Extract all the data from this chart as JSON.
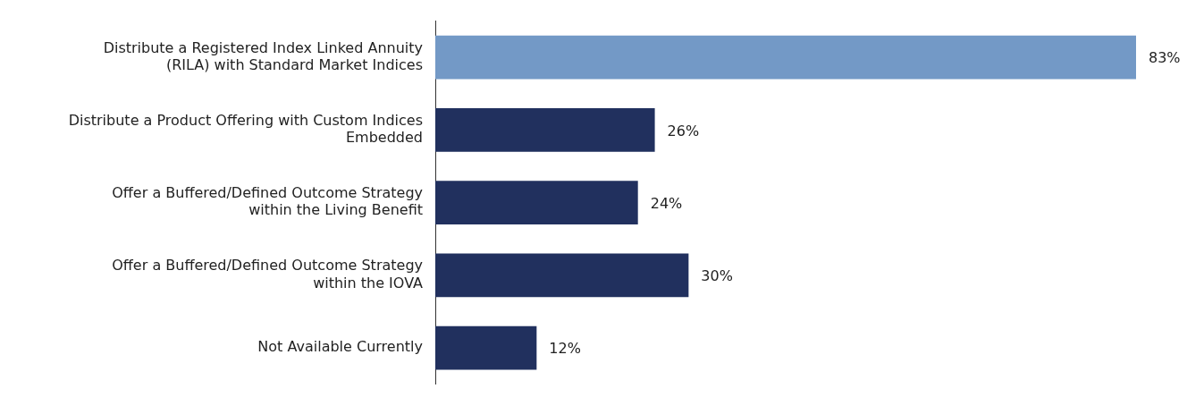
{
  "chart_data": {
    "type": "bar",
    "orientation": "horizontal",
    "categories": [
      "Distribute a Registered Index Linked Annuity (RILA) with Standard Market Indices",
      "Distribute a Product Offering with Custom Indices Embedded",
      "Offer a Buffered/Defined Outcome Strategy within the Living Benefit",
      "Offer a Buffered/Defined Outcome Strategy within the IOVA",
      "Not Available Currently"
    ],
    "values": [
      83,
      26,
      24,
      30,
      12
    ],
    "colors": [
      "#7399c6",
      "#21305e",
      "#21305e",
      "#21305e",
      "#21305e"
    ],
    "value_labels": [
      "83%",
      "26%",
      "24%",
      "30%",
      "12%"
    ],
    "tick_labels": "y"
  }
}
